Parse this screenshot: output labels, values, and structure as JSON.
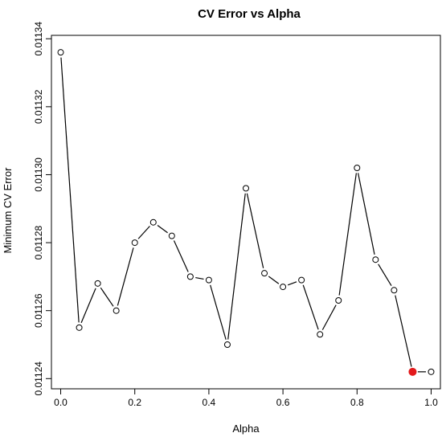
{
  "chart_data": {
    "type": "line",
    "title": "CV Error vs Alpha",
    "xlabel": "Alpha",
    "ylabel": "Minimum CV Error",
    "xlim": [
      -0.025,
      1.025
    ],
    "ylim": [
      0.011237,
      0.011341
    ],
    "x_ticks": [
      0.0,
      0.2,
      0.4,
      0.6,
      0.8,
      1.0
    ],
    "x_tick_labels": [
      "0.0",
      "0.2",
      "0.4",
      "0.6",
      "0.8",
      "1.0"
    ],
    "y_ticks": [
      0.01124,
      0.01126,
      0.01128,
      0.0113,
      0.01132,
      0.01134
    ],
    "y_tick_labels": [
      "0.01124",
      "0.01126",
      "0.01128",
      "0.01130",
      "0.01132",
      "0.01134"
    ],
    "grid": false,
    "series": [
      {
        "x": [
          0.0,
          0.05,
          0.1,
          0.15,
          0.2,
          0.25,
          0.3,
          0.35,
          0.4,
          0.45,
          0.5,
          0.55,
          0.6,
          0.65,
          0.7,
          0.75,
          0.8,
          0.85,
          0.9,
          0.95,
          1.0
        ],
        "y": [
          0.011336,
          0.011255,
          0.011268,
          0.01126,
          0.01128,
          0.011286,
          0.011282,
          0.01127,
          0.011269,
          0.01125,
          0.011296,
          0.011271,
          0.011267,
          0.011269,
          0.011253,
          0.011263,
          0.011302,
          0.011275,
          0.011266,
          0.011242,
          0.011242
        ]
      }
    ],
    "highlight": {
      "x": 0.95,
      "y": 0.011242,
      "color": "#e31a1c"
    }
  }
}
